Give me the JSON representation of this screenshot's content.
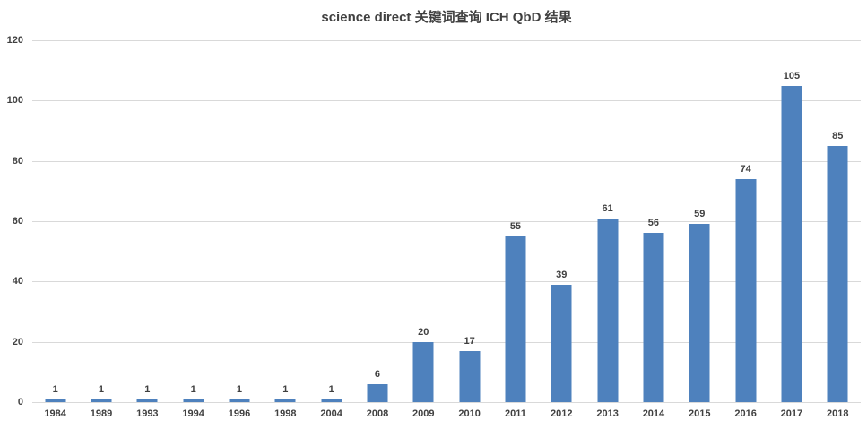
{
  "chart_data": {
    "type": "bar",
    "title": "science direct 关键词查询 ICH QbD 结果",
    "categories": [
      "1984",
      "1989",
      "1993",
      "1994",
      "1996",
      "1998",
      "2004",
      "2008",
      "2009",
      "2010",
      "2011",
      "2012",
      "2013",
      "2014",
      "2015",
      "2016",
      "2017",
      "2018"
    ],
    "values": [
      1,
      1,
      1,
      1,
      1,
      1,
      1,
      6,
      20,
      17,
      55,
      39,
      61,
      56,
      59,
      74,
      105,
      85
    ],
    "xlabel": "",
    "ylabel": "",
    "ylim": [
      0,
      120
    ],
    "yticks": [
      0,
      20,
      40,
      60,
      80,
      100,
      120
    ],
    "grid": "horizontal",
    "legend": "none",
    "data_labels": "above-bars",
    "colors": {
      "bar": "#4e81bd",
      "gridline": "#d9d9d9",
      "text": "#404040",
      "background": "#ffffff"
    }
  }
}
